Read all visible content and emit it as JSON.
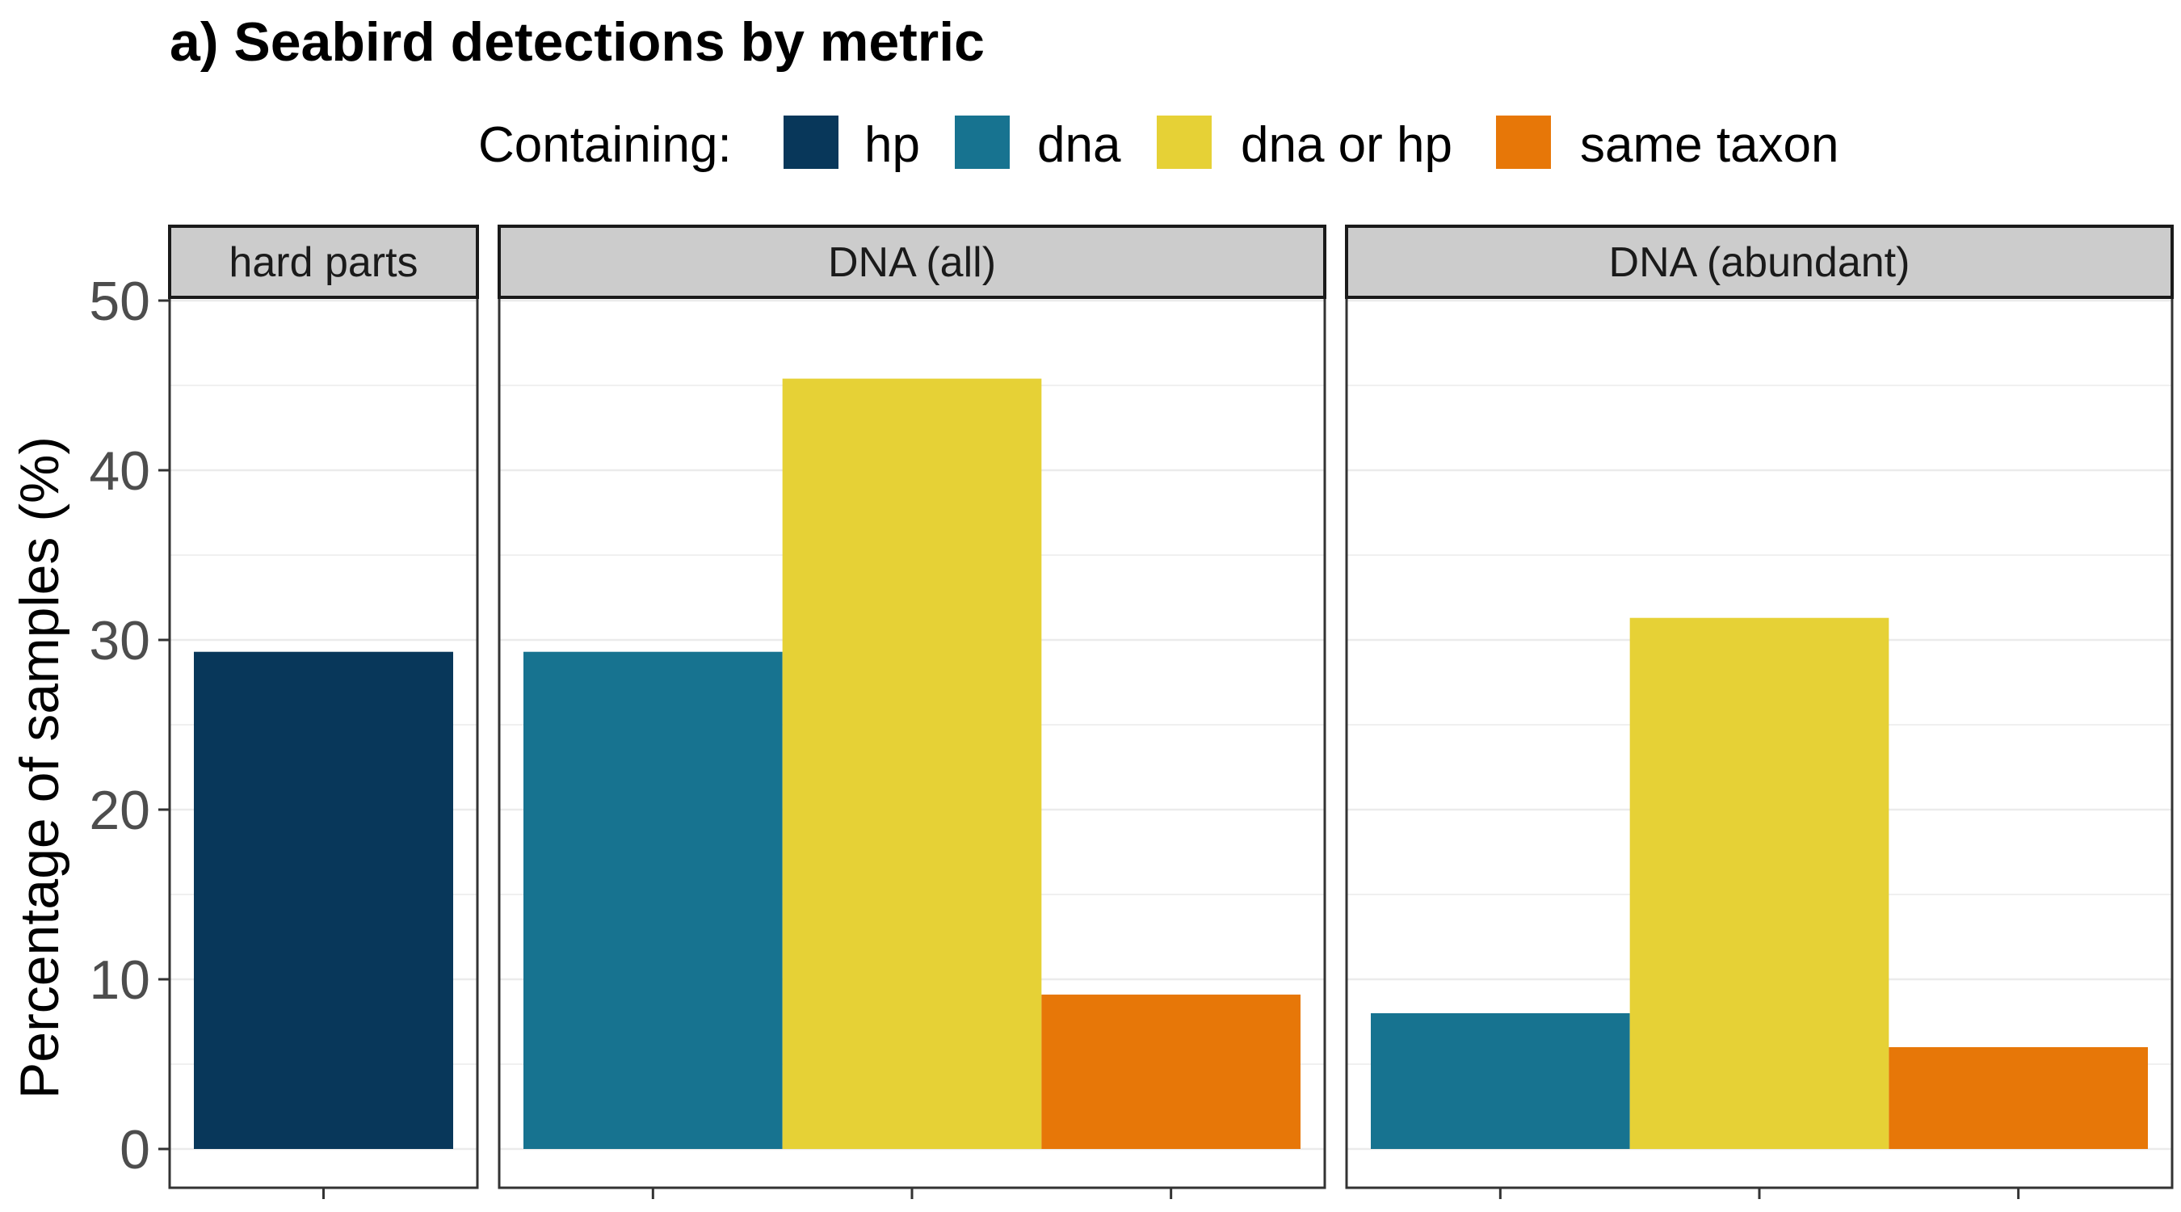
{
  "chart_data": {
    "type": "bar",
    "title": "a) Seabird detections by metric",
    "ylabel": "Percentage of samples (%)",
    "xlabel": "",
    "ylim": [
      0,
      53
    ],
    "y_ticks": [
      0,
      10,
      20,
      30,
      40,
      50
    ],
    "grid": true,
    "legend": {
      "title": "Containing:",
      "placement": "top",
      "entries": [
        {
          "key": "hp",
          "label": "hp",
          "color": "#08375a"
        },
        {
          "key": "dna",
          "label": "dna",
          "color": "#177390"
        },
        {
          "key": "dna_or_hp",
          "label": "dna or hp",
          "color": "#e6d136"
        },
        {
          "key": "same_taxon",
          "label": "same taxon",
          "color": "#e77708"
        }
      ]
    },
    "panels": [
      {
        "label": "hard parts",
        "bars": [
          {
            "series": "hp",
            "value": 29.3
          }
        ]
      },
      {
        "label": "DNA (all)",
        "bars": [
          {
            "series": "dna",
            "value": 29.3
          },
          {
            "series": "dna_or_hp",
            "value": 45.4
          },
          {
            "series": "same_taxon",
            "value": 9.1
          }
        ]
      },
      {
        "label": "DNA (abundant)",
        "bars": [
          {
            "series": "dna",
            "value": 8.0
          },
          {
            "series": "dna_or_hp",
            "value": 31.3
          },
          {
            "series": "same_taxon",
            "value": 6.0
          }
        ]
      }
    ]
  }
}
